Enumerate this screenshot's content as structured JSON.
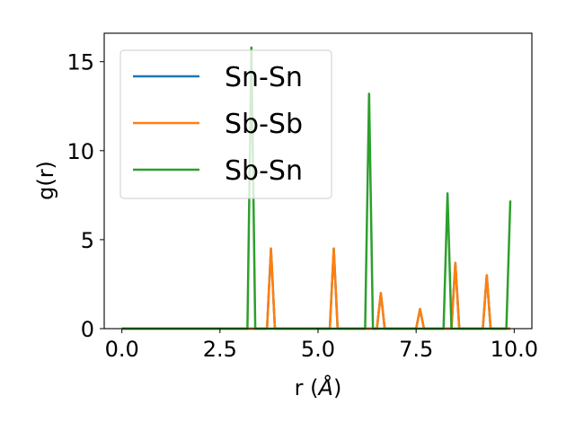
{
  "chart_data": {
    "type": "line",
    "xlabel": "r (",
    "xlabel_symbol": "Å",
    "xlabel_close": ")",
    "ylabel": "g(r)",
    "xlim": [
      -0.45,
      10.45
    ],
    "ylim": [
      0,
      16.6
    ],
    "xticks": [
      0.0,
      2.5,
      5.0,
      7.5,
      10.0
    ],
    "xtick_labels": [
      "0.0",
      "2.5",
      "5.0",
      "7.5",
      "10.0"
    ],
    "yticks": [
      0,
      5,
      10,
      15
    ],
    "ytick_labels": [
      "0",
      "5",
      "10",
      "15"
    ],
    "grid": false,
    "legend_position": "upper-left",
    "series": [
      {
        "name": "Sn-Sn",
        "color": "#1f77b4",
        "x": [
          0,
          3.7,
          3.8,
          3.9,
          5.3,
          5.4,
          5.5,
          6.5,
          6.6,
          6.7,
          7.5,
          7.6,
          7.7,
          8.4,
          8.5,
          8.6,
          9.2,
          9.3,
          9.4,
          9.9
        ],
        "y": [
          0,
          0,
          4.5,
          0,
          0,
          4.5,
          0,
          0,
          2.0,
          0,
          0,
          1.1,
          0,
          0,
          3.7,
          0,
          0,
          3.0,
          0,
          0
        ]
      },
      {
        "name": "Sb-Sb",
        "color": "#ff7f0e",
        "x": [
          0,
          3.7,
          3.8,
          3.9,
          5.3,
          5.4,
          5.5,
          6.5,
          6.6,
          6.7,
          7.5,
          7.6,
          7.7,
          8.4,
          8.5,
          8.6,
          9.2,
          9.3,
          9.4,
          9.9
        ],
        "y": [
          0,
          0,
          4.5,
          0,
          0,
          4.5,
          0,
          0,
          2.0,
          0,
          0,
          1.1,
          0,
          0,
          3.7,
          0,
          0,
          3.0,
          0,
          0
        ]
      },
      {
        "name": "Sb-Sn",
        "color": "#2ca02c",
        "x": [
          0,
          3.2,
          3.3,
          3.4,
          6.2,
          6.3,
          6.4,
          8.2,
          8.3,
          8.4,
          9.8,
          9.9
        ],
        "y": [
          0,
          0,
          15.8,
          0,
          0,
          13.2,
          0,
          0,
          7.6,
          0,
          0,
          7.2
        ]
      }
    ]
  }
}
